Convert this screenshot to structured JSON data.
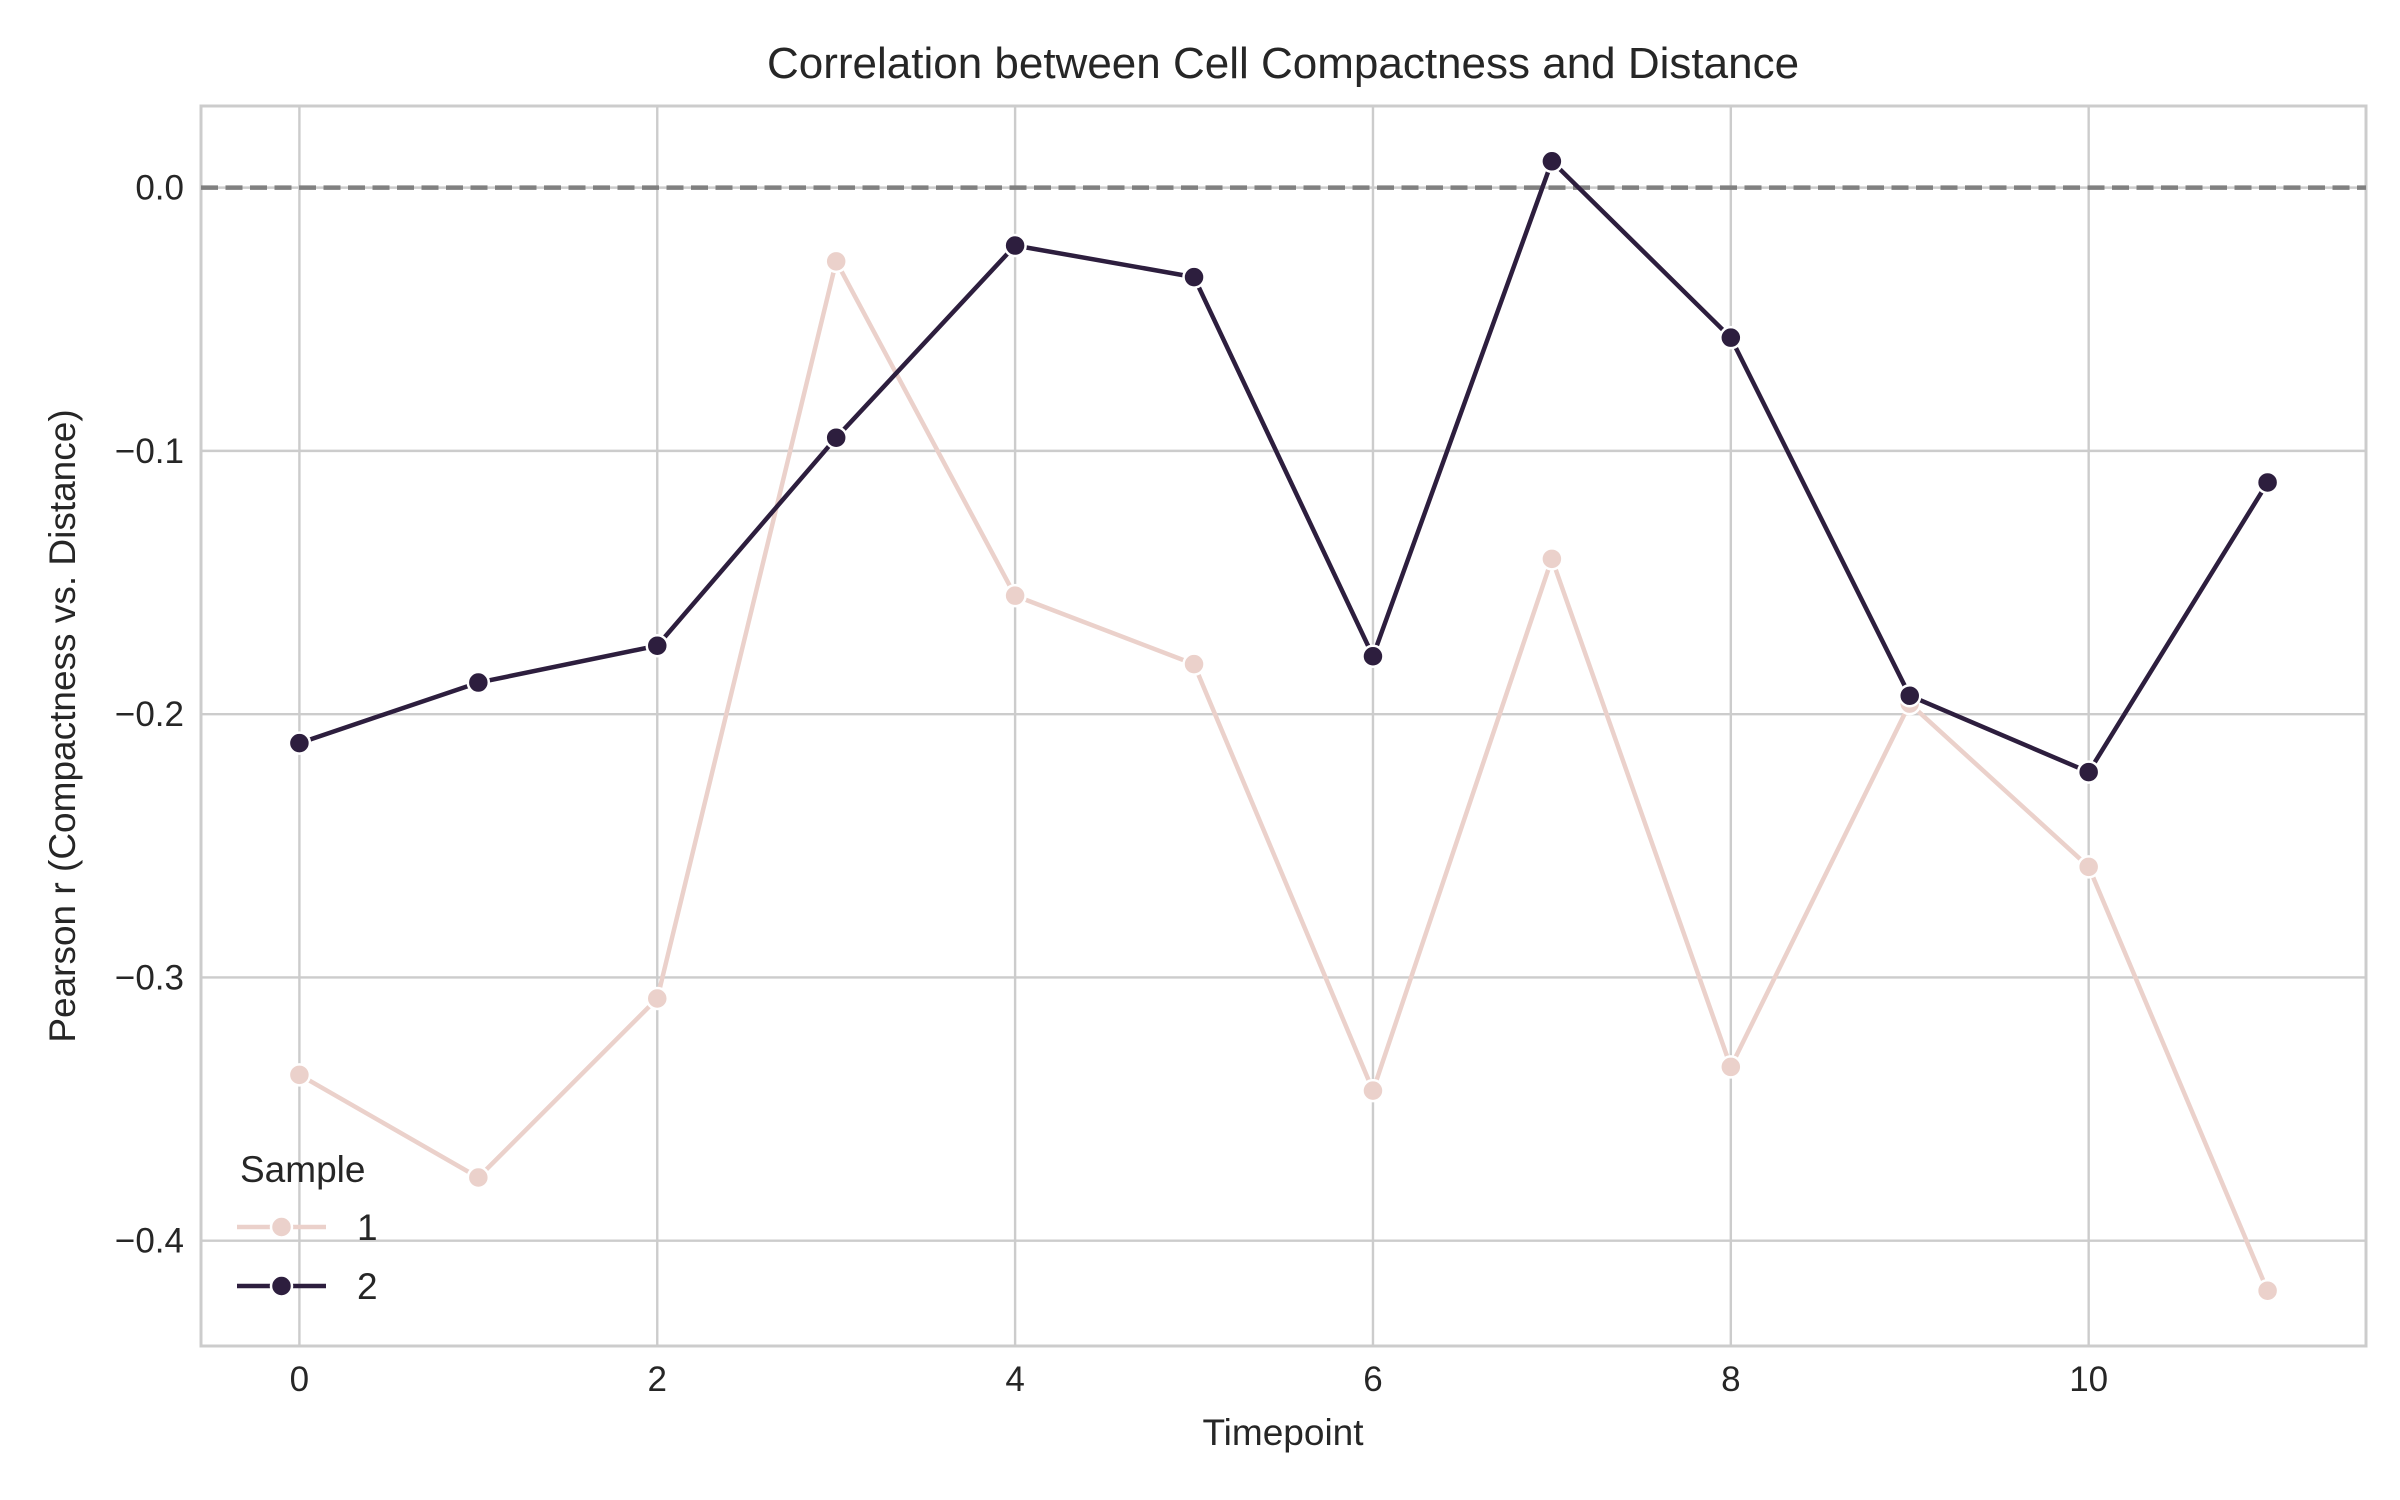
{
  "chart_data": {
    "type": "line",
    "title": "Correlation between Cell Compactness and Distance",
    "xlabel": "Timepoint",
    "ylabel": "Pearson r (Compactness vs. Distance)",
    "xlim": [
      -0.55,
      11.55
    ],
    "ylim": [
      -0.44,
      0.031
    ],
    "x_ticks": [
      0,
      2,
      4,
      6,
      8,
      10
    ],
    "x_tick_labels": [
      "0",
      "2",
      "4",
      "6",
      "8",
      "10"
    ],
    "y_ticks": [
      0.0,
      -0.1,
      -0.2,
      -0.3,
      -0.4
    ],
    "y_tick_labels": [
      "0.0",
      "−0.1",
      "−0.2",
      "−0.3",
      "−0.4"
    ],
    "grid": true,
    "reference_line": {
      "y": 0.0,
      "style": "dashed",
      "color": "#808080"
    },
    "legend": {
      "title": "Sample",
      "placement": "lower-left"
    },
    "x": [
      0,
      1,
      2,
      3,
      4,
      5,
      6,
      7,
      8,
      9,
      10,
      11
    ],
    "series": [
      {
        "name": "1",
        "color": "#ebd1cb",
        "marker": "circle",
        "values": [
          -0.337,
          -0.376,
          -0.308,
          -0.028,
          -0.155,
          -0.181,
          -0.343,
          -0.141,
          -0.334,
          -0.196,
          -0.258,
          -0.419
        ]
      },
      {
        "name": "2",
        "color": "#2d1e3e",
        "marker": "circle",
        "values": [
          -0.211,
          -0.188,
          -0.174,
          -0.095,
          -0.022,
          -0.034,
          -0.178,
          0.01,
          -0.057,
          -0.193,
          -0.222,
          -0.112
        ]
      }
    ]
  }
}
